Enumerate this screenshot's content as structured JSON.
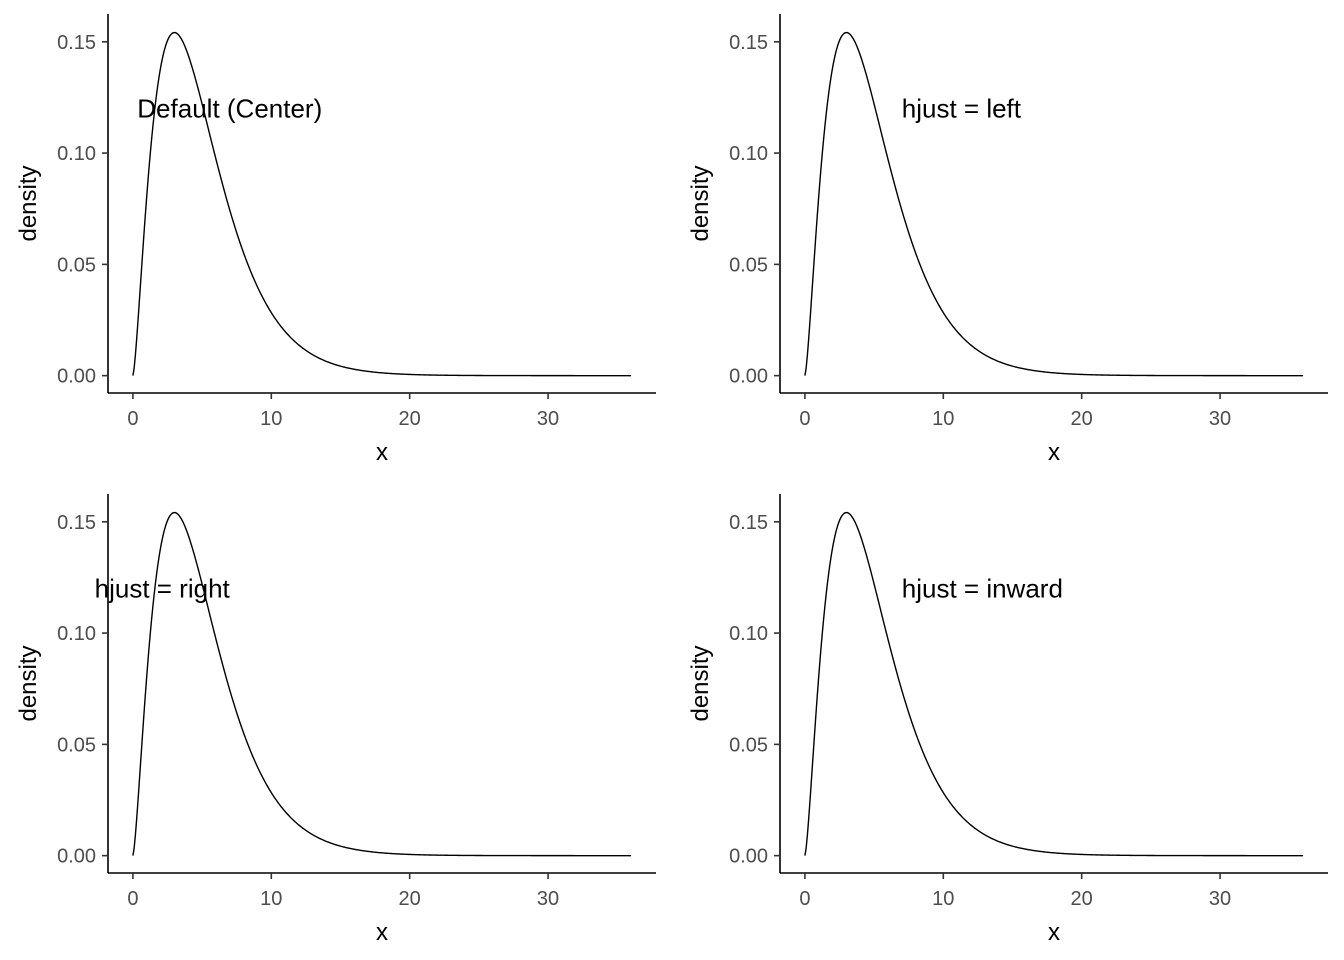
{
  "chart_data": [
    {
      "type": "line",
      "title": "",
      "xlabel": "x",
      "ylabel": "density",
      "xlim": [
        -1.8,
        37.8
      ],
      "ylim": [
        -0.0078,
        0.1625
      ],
      "xticks": [
        0,
        10,
        20,
        30
      ],
      "xtick_labels": [
        "0",
        "10",
        "20",
        "30"
      ],
      "yticks": [
        0,
        0.05,
        0.1,
        0.15
      ],
      "ytick_labels": [
        "0.00",
        "0.05",
        "0.10",
        "0.15"
      ],
      "grid": false,
      "series": [
        {
          "distribution": "chi-squared",
          "df": 5,
          "x_range": [
            0,
            36
          ]
        }
      ],
      "annotation": {
        "text": "Default (Center)",
        "x": 7,
        "y": 0.12,
        "hjust": "center"
      }
    },
    {
      "type": "line",
      "title": "",
      "xlabel": "x",
      "ylabel": "density",
      "xlim": [
        -1.8,
        37.8
      ],
      "ylim": [
        -0.0078,
        0.1625
      ],
      "xticks": [
        0,
        10,
        20,
        30
      ],
      "xtick_labels": [
        "0",
        "10",
        "20",
        "30"
      ],
      "yticks": [
        0,
        0.05,
        0.1,
        0.15
      ],
      "ytick_labels": [
        "0.00",
        "0.05",
        "0.10",
        "0.15"
      ],
      "grid": false,
      "series": [
        {
          "distribution": "chi-squared",
          "df": 5,
          "x_range": [
            0,
            36
          ]
        }
      ],
      "annotation": {
        "text": "hjust = left",
        "x": 7,
        "y": 0.12,
        "hjust": "left"
      }
    },
    {
      "type": "line",
      "title": "",
      "xlabel": "x",
      "ylabel": "density",
      "xlim": [
        -1.8,
        37.8
      ],
      "ylim": [
        -0.0078,
        0.1625
      ],
      "xticks": [
        0,
        10,
        20,
        30
      ],
      "xtick_labels": [
        "0",
        "10",
        "20",
        "30"
      ],
      "yticks": [
        0,
        0.05,
        0.1,
        0.15
      ],
      "ytick_labels": [
        "0.00",
        "0.05",
        "0.10",
        "0.15"
      ],
      "grid": false,
      "series": [
        {
          "distribution": "chi-squared",
          "df": 5,
          "x_range": [
            0,
            36
          ]
        }
      ],
      "annotation": {
        "text": "hjust = right",
        "x": 7,
        "y": 0.12,
        "hjust": "right",
        "visible_text": "ust = right"
      }
    },
    {
      "type": "line",
      "title": "",
      "xlabel": "x",
      "ylabel": "density",
      "xlim": [
        -1.8,
        37.8
      ],
      "ylim": [
        -0.0078,
        0.1625
      ],
      "xticks": [
        0,
        10,
        20,
        30
      ],
      "xtick_labels": [
        "0",
        "10",
        "20",
        "30"
      ],
      "yticks": [
        0,
        0.05,
        0.1,
        0.15
      ],
      "ytick_labels": [
        "0.00",
        "0.05",
        "0.10",
        "0.15"
      ],
      "grid": false,
      "series": [
        {
          "distribution": "chi-squared",
          "df": 5,
          "x_range": [
            0,
            36
          ]
        }
      ],
      "annotation": {
        "text": "hjust = inward",
        "x": 7,
        "y": 0.12,
        "hjust": "left"
      }
    }
  ]
}
